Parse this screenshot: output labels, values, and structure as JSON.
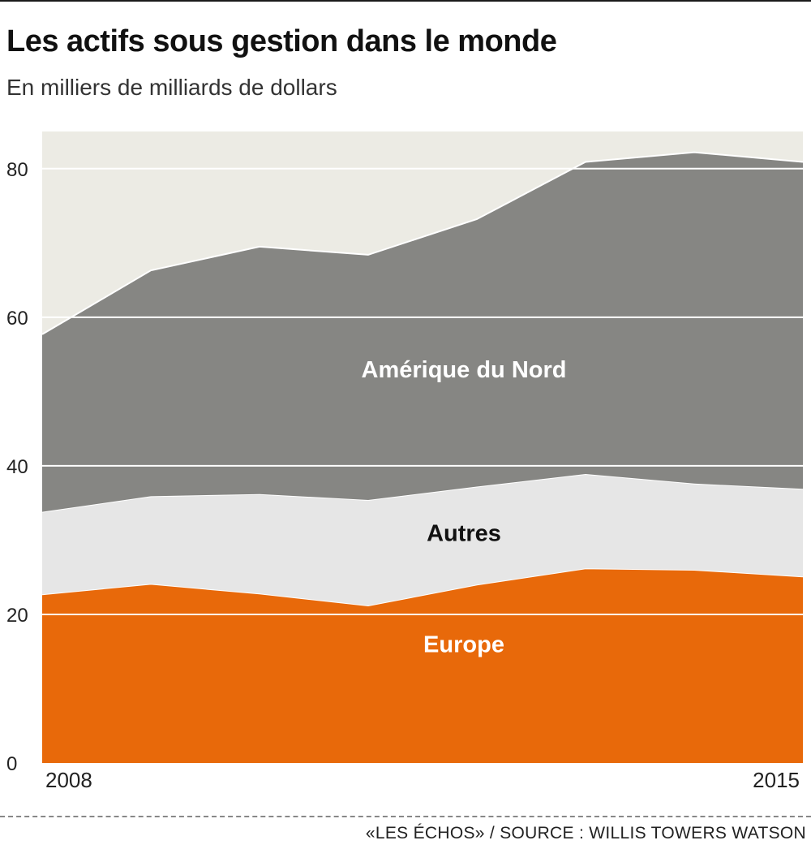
{
  "header": {
    "title": "Les actifs sous gestion dans le monde",
    "subtitle": "En milliers de milliards de dollars"
  },
  "footer": {
    "source": "«LES ÉCHOS»  / SOURCE : WILLIS TOWERS WATSON"
  },
  "chart_data": {
    "type": "area",
    "stacked": true,
    "title": "Les actifs sous gestion dans le monde",
    "subtitle": "En milliers de milliards de dollars",
    "x": [
      2008,
      2009,
      2010,
      2011,
      2012,
      2013,
      2014,
      2015
    ],
    "x_tick_labels": [
      "2008",
      "2015"
    ],
    "y_ticks": [
      0,
      20,
      40,
      60,
      80
    ],
    "ylim": [
      0,
      85
    ],
    "grid": true,
    "series": [
      {
        "name": "Europe",
        "values": [
          22.7,
          24.1,
          22.8,
          21.2,
          24.0,
          26.2,
          26.0,
          25.1
        ],
        "color": "#e8690a",
        "label_color": "#ffffff"
      },
      {
        "name": "Autres",
        "values": [
          11.1,
          11.8,
          13.4,
          14.2,
          13.2,
          12.7,
          11.6,
          11.8
        ],
        "color": "#e6e6e6",
        "label_color": "#111111"
      },
      {
        "name": "Amérique du Nord",
        "values": [
          23.9,
          30.4,
          33.3,
          33.0,
          36.0,
          42.0,
          44.6,
          44.0
        ],
        "color": "#868683",
        "label_color": "#ffffff"
      }
    ],
    "background_color": "#ecebe4"
  }
}
